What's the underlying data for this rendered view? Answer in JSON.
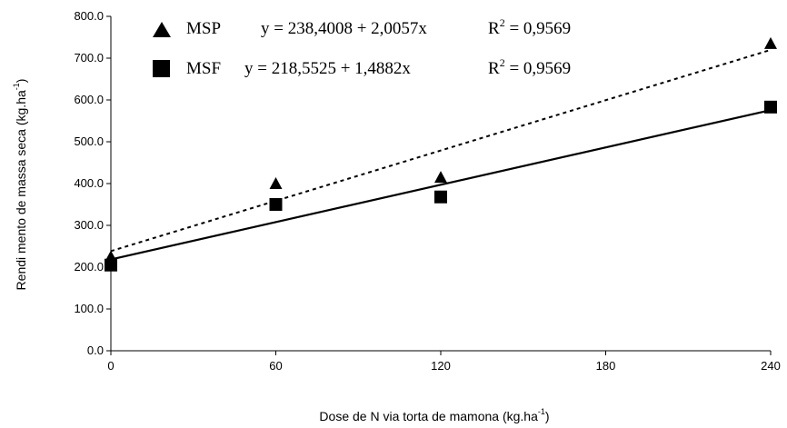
{
  "chart_data": {
    "type": "scatter",
    "xlabel_prefix": "Dose de N via torta de mamona (kg.ha",
    "xlabel_exp": "-1",
    "xlabel_suffix": ")",
    "ylabel_prefix": "Rendi mento de massa seca (kg.ha",
    "ylabel_exp": "-1",
    "ylabel_suffix": ")",
    "xlim": [
      0,
      240
    ],
    "ylim": [
      0,
      800
    ],
    "x_ticks": [
      0,
      60,
      120,
      180,
      240
    ],
    "x_tick_labels": [
      "0",
      "60",
      "120",
      "180",
      "240"
    ],
    "y_ticks": [
      0,
      100,
      200,
      300,
      400,
      500,
      600,
      700,
      800
    ],
    "y_tick_labels": [
      "0.0",
      "100.0",
      "200.0",
      "300.0",
      "400.0",
      "500.0",
      "600.0",
      "700.0",
      "800.0"
    ],
    "series": [
      {
        "name": "MSP",
        "marker": "triangle",
        "line_style": "dotted",
        "equation": "y = 238,4008 + 2,0057x",
        "r2_label": "R",
        "r2_exp": "2",
        "r2_value": " = 0,9569",
        "intercept": 238.4008,
        "slope": 2.0057,
        "points": [
          [
            0,
            225
          ],
          [
            60,
            400
          ],
          [
            120,
            415
          ],
          [
            240,
            735
          ]
        ]
      },
      {
        "name": "MSF",
        "marker": "square",
        "line_style": "solid",
        "equation": "y = 218,5525 + 1,4882x",
        "r2_label": "R",
        "r2_exp": "2",
        "r2_value": " = 0,9569",
        "intercept": 218.5525,
        "slope": 1.4882,
        "points": [
          [
            0,
            205
          ],
          [
            60,
            350
          ],
          [
            120,
            368
          ],
          [
            240,
            583
          ]
        ]
      }
    ],
    "legend_position": "top-left",
    "grid": false,
    "colors": {
      "marks": "#000000",
      "background": "#ffffff"
    }
  }
}
